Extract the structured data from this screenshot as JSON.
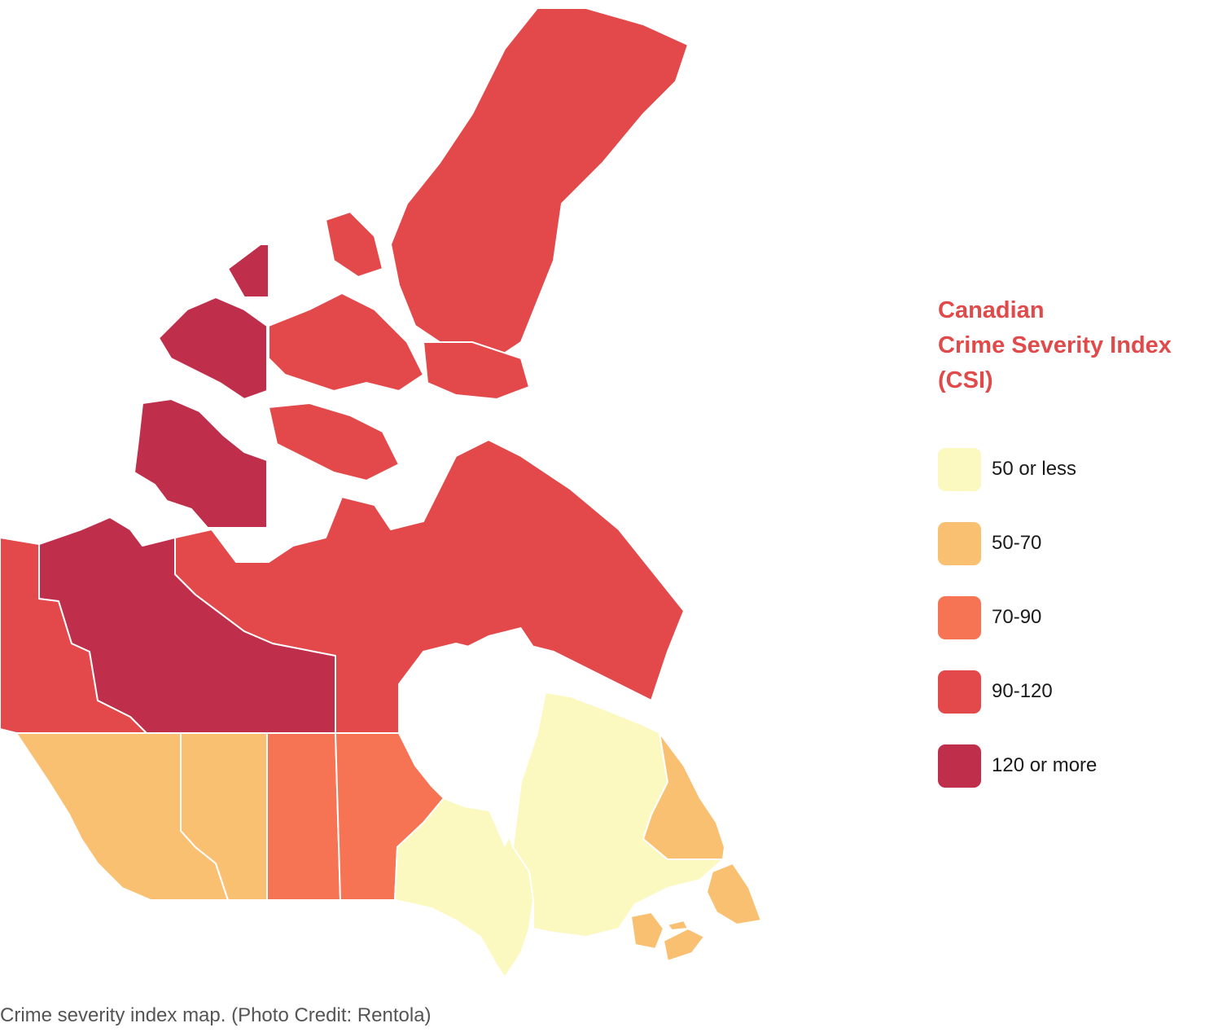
{
  "legend": {
    "title_lines": [
      "Canadian",
      "Crime Severity Index",
      "(CSI)"
    ],
    "title_color": "#e04a4a",
    "items": [
      {
        "label": "50 or less",
        "color": "#fbf8c0"
      },
      {
        "label": "50-70",
        "color": "#fac072"
      },
      {
        "label": "70-90",
        "color": "#f67354"
      },
      {
        "label": "90-120",
        "color": "#e3494a"
      },
      {
        "label": "120 or more",
        "color": "#bf2f4c"
      }
    ]
  },
  "regions": [
    {
      "name": "Yukon",
      "category": "90-120"
    },
    {
      "name": "Northwest Territories",
      "category": "120 or more"
    },
    {
      "name": "Nunavut",
      "category": "90-120"
    },
    {
      "name": "British Columbia",
      "category": "50-70"
    },
    {
      "name": "Alberta",
      "category": "50-70"
    },
    {
      "name": "Saskatchewan",
      "category": "70-90"
    },
    {
      "name": "Manitoba",
      "category": "70-90"
    },
    {
      "name": "Ontario",
      "category": "50 or less"
    },
    {
      "name": "Quebec",
      "category": "50 or less"
    },
    {
      "name": "Newfoundland and Labrador",
      "category": "50-70"
    },
    {
      "name": "New Brunswick",
      "category": "50-70"
    },
    {
      "name": "Nova Scotia",
      "category": "50-70"
    },
    {
      "name": "Prince Edward Island",
      "category": "50-70"
    }
  ],
  "caption": "Crime severity index map. (Photo Credit: Rentola)"
}
